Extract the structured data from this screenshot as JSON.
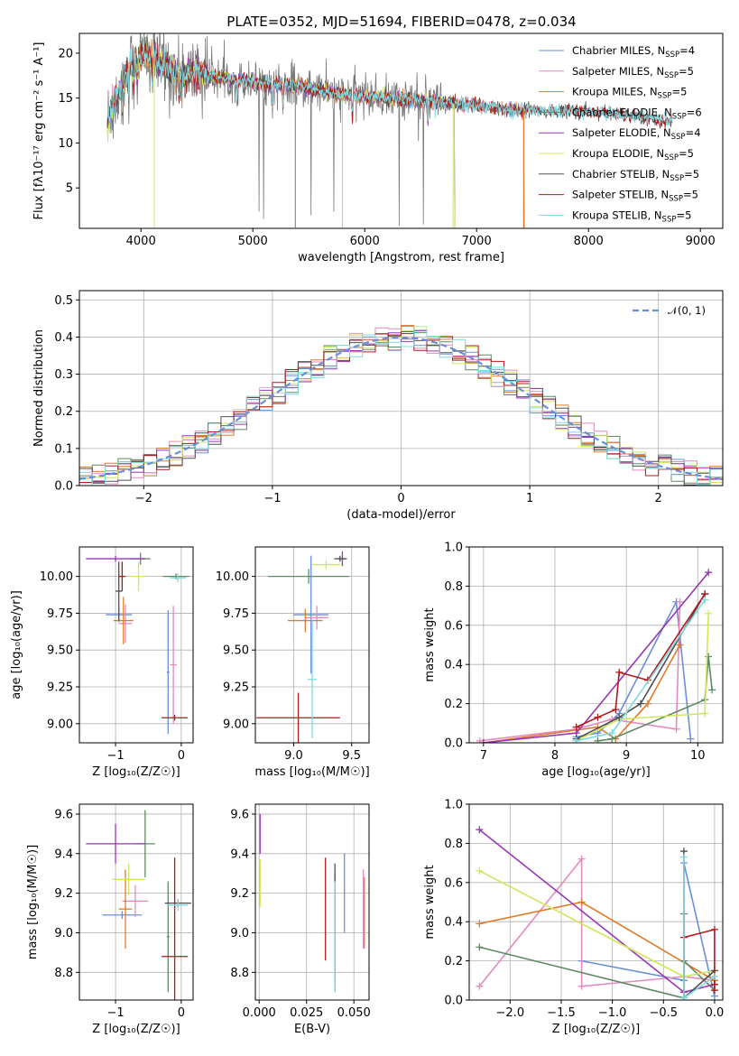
{
  "title": "PLATE=0352, MJD=51694, FIBERID=0478, z=0.034",
  "colors": [
    "#6a8fd8",
    "#e58ac0",
    "#e07b2a",
    "#5f8a63",
    "#9b36b3",
    "#cfe859",
    "#505050",
    "#b01a1a",
    "#7fd9e0"
  ],
  "chart_data": [
    {
      "id": "spectrum",
      "type": "line",
      "xlabel": "wavelength [Angstrom, rest frame]",
      "ylabel": "Flux [fλ10⁻¹⁷ erg cm⁻² s⁻¹ A⁻¹]",
      "xlim": [
        3450,
        9200
      ],
      "ylim": [
        0.5,
        22.2
      ],
      "xticks": [
        4000,
        5000,
        6000,
        7000,
        8000,
        9000
      ],
      "yticks": [
        5,
        10,
        15,
        20
      ],
      "legend_position": "top-right",
      "series": [
        {
          "name": "Chabrier MILES, N_SSP=4",
          "color": "#6a8fd8"
        },
        {
          "name": "Salpeter MILES, N_SSP=5",
          "color": "#e58ac0"
        },
        {
          "name": "Kroupa MILES, N_SSP=5",
          "color": "#e07b2a"
        },
        {
          "name": "Chabrier ELODIE, N_SSP=6",
          "color": "#5f8a63"
        },
        {
          "name": "Salpeter ELODIE, N_SSP=4",
          "color": "#9b36b3"
        },
        {
          "name": "Kroupa ELODIE, N_SSP=5",
          "color": "#cfe859"
        },
        {
          "name": "Chabrier STELIB, N_SSP=5",
          "color": "#505050"
        },
        {
          "name": "Salpeter STELIB, N_SSP=5",
          "color": "#b01a1a"
        },
        {
          "name": "Kroupa STELIB, N_SSP=5",
          "color": "#7fd9e0"
        }
      ],
      "continuum_x": [
        3700,
        3800,
        3900,
        4000,
        4100,
        4300,
        4600,
        5000,
        5400,
        5800,
        6200,
        6600,
        7000,
        7400,
        7800,
        8200,
        8600,
        8800
      ],
      "continuum_y": [
        12.5,
        15.5,
        18.5,
        19.8,
        19.5,
        17.8,
        17.5,
        16.8,
        16.3,
        15.4,
        15.0,
        14.6,
        14.2,
        13.6,
        13.6,
        13.3,
        12.6,
        12.4
      ],
      "end_x": {
        "data_noisy": 6700,
        "miles": 7420,
        "elodie": 6800,
        "stelib": 8750
      }
    },
    {
      "id": "residuals",
      "type": "step",
      "xlabel": "(data-model)/error",
      "ylabel": "Normed distribution",
      "xlim": [
        -2.5,
        2.5
      ],
      "ylim": [
        0,
        0.525
      ],
      "xticks": [
        -2,
        -1,
        0,
        1,
        2
      ],
      "yticks": [
        0.0,
        0.1,
        0.2,
        0.3,
        0.4,
        0.5
      ],
      "legend_position": "top-right",
      "reference": {
        "name": "𝒩(0, 1)",
        "mean": 0,
        "sd": 1,
        "color": "#6a8fd8"
      },
      "bin_width": 0.1
    },
    {
      "id": "age_vs_Z",
      "type": "errorbar",
      "xlabel": "Z [log₁₀(Z/Z☉)]",
      "ylabel": "age  [log₁₀(age/yr)]",
      "xlim": [
        -1.55,
        0.18
      ],
      "ylim": [
        8.87,
        10.2
      ],
      "xticks": [
        -1,
        0
      ],
      "yticks": [
        9.0,
        9.25,
        9.5,
        9.75,
        10.0
      ],
      "points": [
        {
          "color": "#6a8fd8",
          "x": -0.95,
          "y": 9.74,
          "xerr": 0.2,
          "yerr": 0.05
        },
        {
          "color": "#6a8fd8",
          "x": -0.2,
          "y": 9.35,
          "xerr": 0.02,
          "yerr": 0.42
        },
        {
          "color": "#e58ac0",
          "x": -0.85,
          "y": 9.68,
          "xerr": 0.1,
          "yerr": 0.13
        },
        {
          "color": "#e58ac0",
          "x": -0.12,
          "y": 9.4,
          "xerr": 0.05,
          "yerr": 0.4
        },
        {
          "color": "#e07b2a",
          "x": -0.88,
          "y": 9.7,
          "xerr": 0.15,
          "yerr": 0.16
        },
        {
          "color": "#5f8a63",
          "x": -0.62,
          "y": 10.12,
          "xerr": 0.15,
          "yerr": 0.04
        },
        {
          "color": "#5f8a63",
          "x": -0.08,
          "y": 10.0,
          "xerr": 0.2,
          "yerr": 0.02
        },
        {
          "color": "#9b36b3",
          "x": -1.0,
          "y": 10.12,
          "xerr": 0.45,
          "yerr": 0.02
        },
        {
          "color": "#cfe859",
          "x": -0.65,
          "y": 10.0,
          "xerr": 0.1,
          "yerr": 0.1
        },
        {
          "color": "#505050",
          "x": -0.95,
          "y": 9.9,
          "xerr": 0.05,
          "yerr": 0.2
        },
        {
          "color": "#b01a1a",
          "x": -0.1,
          "y": 9.04,
          "xerr": 0.2,
          "yerr": 0.02
        },
        {
          "color": "#b01a1a",
          "x": -0.9,
          "y": 10.0,
          "xerr": 0.05,
          "yerr": 0.1
        },
        {
          "color": "#7fd9e0",
          "x": -0.05,
          "y": 9.99,
          "xerr": 0.12,
          "yerr": 0.03
        }
      ]
    },
    {
      "id": "age_vs_mass",
      "type": "errorbar",
      "xlabel": "mass [log₁₀(M/M☉)]",
      "ylabel": "",
      "xlim": [
        8.67,
        9.65
      ],
      "ylim": [
        8.87,
        10.2
      ],
      "xticks": [
        9.0,
        9.5
      ],
      "yticks": [
        9.0,
        9.25,
        9.5,
        9.75,
        10.0
      ],
      "points": [
        {
          "color": "#6a8fd8",
          "x": 9.15,
          "y": 9.74,
          "xerr": 0.15,
          "yerr": 0.4
        },
        {
          "color": "#e58ac0",
          "x": 9.2,
          "y": 9.72,
          "xerr": 0.1,
          "yerr": 0.08
        },
        {
          "color": "#e07b2a",
          "x": 9.1,
          "y": 9.7,
          "xerr": 0.15,
          "yerr": 0.08
        },
        {
          "color": "#5f8a63",
          "x": 9.13,
          "y": 10.0,
          "xerr": 0.35,
          "yerr": 0.05
        },
        {
          "color": "#9b36b3",
          "x": 9.42,
          "y": 10.12,
          "xerr": 0.04,
          "yerr": 0.05
        },
        {
          "color": "#cfe859",
          "x": 9.28,
          "y": 10.08,
          "xerr": 0.12,
          "yerr": 0.03
        },
        {
          "color": "#505050",
          "x": 9.4,
          "y": 10.12,
          "xerr": 0.05,
          "yerr": 0.02
        },
        {
          "color": "#b01a1a",
          "x": 9.04,
          "y": 9.04,
          "xerr": 0.36,
          "yerr": 0.17
        },
        {
          "color": "#7fd9e0",
          "x": 9.16,
          "y": 9.3,
          "xerr": 0.04,
          "yerr": 0.4
        }
      ]
    },
    {
      "id": "weight_vs_age",
      "type": "line",
      "xlabel": "age  [log₁₀(age/yr)]",
      "ylabel": "mass weight",
      "xlim": [
        6.8,
        10.35
      ],
      "ylim": [
        0,
        1
      ],
      "xticks": [
        7,
        8,
        9,
        10
      ],
      "yticks": [
        0.0,
        0.2,
        0.4,
        0.6,
        0.8,
        1.0
      ],
      "series": [
        {
          "color": "#6a8fd8",
          "x": [
            8.3,
            8.6,
            8.9,
            9.7,
            9.9
          ],
          "y": [
            0.03,
            0.05,
            0.15,
            0.72,
            0.02
          ]
        },
        {
          "color": "#e58ac0",
          "x": [
            6.95,
            8.3,
            8.8,
            9.7,
            9.75
          ],
          "y": [
            0.01,
            0.07,
            0.12,
            0.07,
            0.72
          ]
        },
        {
          "color": "#e07b2a",
          "x": [
            7.0,
            8.6,
            8.85,
            9.3,
            9.75
          ],
          "y": [
            0.0,
            0.08,
            0.02,
            0.2,
            0.5
          ]
        },
        {
          "color": "#5f8a63",
          "x": [
            8.6,
            8.8,
            10.1,
            10.15,
            10.2
          ],
          "y": [
            0.01,
            0.02,
            0.22,
            0.44,
            0.27
          ]
        },
        {
          "color": "#9b36b3",
          "x": [
            7.0,
            8.3,
            10.15
          ],
          "y": [
            0.0,
            0.05,
            0.87
          ]
        },
        {
          "color": "#cfe859",
          "x": [
            8.3,
            8.9,
            10.1,
            10.15
          ],
          "y": [
            0.01,
            0.12,
            0.15,
            0.66
          ]
        },
        {
          "color": "#505050",
          "x": [
            8.3,
            8.9,
            9.2,
            10.1
          ],
          "y": [
            0.02,
            0.13,
            0.2,
            0.76
          ]
        },
        {
          "color": "#b01a1a",
          "x": [
            8.3,
            8.6,
            8.85,
            8.9,
            9.3,
            10.1
          ],
          "y": [
            0.08,
            0.13,
            0.17,
            0.36,
            0.32,
            0.76
          ]
        },
        {
          "color": "#7fd9e0",
          "x": [
            8.3,
            8.8,
            10.1
          ],
          "y": [
            0.01,
            0.05,
            0.73
          ]
        }
      ]
    },
    {
      "id": "mass_vs_Z",
      "type": "errorbar",
      "xlabel": "Z [log₁₀(Z/Z☉)]",
      "ylabel": "mass [log₁₀(M/M☉)]",
      "xlim": [
        -1.55,
        0.18
      ],
      "ylim": [
        8.66,
        9.65
      ],
      "xticks": [
        -1,
        0
      ],
      "yticks": [
        8.8,
        9.0,
        9.2,
        9.4,
        9.6
      ],
      "points": [
        {
          "color": "#6a8fd8",
          "x": -0.9,
          "y": 9.09,
          "xerr": 0.3,
          "yerr": 0.02
        },
        {
          "color": "#e58ac0",
          "x": -0.7,
          "y": 9.16,
          "xerr": 0.2,
          "yerr": 0.08
        },
        {
          "color": "#e07b2a",
          "x": -0.85,
          "y": 9.12,
          "xerr": 0.1,
          "yerr": 0.2
        },
        {
          "color": "#5f8a63",
          "x": -0.55,
          "y": 9.45,
          "xerr": 0.15,
          "yerr": 0.17
        },
        {
          "color": "#5f8a63",
          "x": -0.2,
          "y": 8.98,
          "xerr": 0.02,
          "yerr": 0.28
        },
        {
          "color": "#9b36b3",
          "x": -1.0,
          "y": 9.45,
          "xerr": 0.45,
          "yerr": 0.1
        },
        {
          "color": "#cfe859",
          "x": -0.8,
          "y": 9.27,
          "xerr": 0.25,
          "yerr": 0.08
        },
        {
          "color": "#505050",
          "x": -0.05,
          "y": 9.15,
          "xerr": 0.2,
          "yerr": 0.02
        },
        {
          "color": "#b01a1a",
          "x": -0.1,
          "y": 8.88,
          "xerr": 0.2,
          "yerr": 0.5
        },
        {
          "color": "#7fd9e0",
          "x": -0.05,
          "y": 9.14,
          "xerr": 0.15,
          "yerr": 0.03
        }
      ]
    },
    {
      "id": "mass_vs_EBV",
      "type": "errorbar",
      "xlabel": "E(B-V)",
      "ylabel": "",
      "xlim": [
        -0.002,
        0.058
      ],
      "ylim": [
        8.66,
        9.65
      ],
      "xticks": [
        0.0,
        0.025,
        0.05
      ],
      "yticks": [
        8.8,
        9.0,
        9.2,
        9.4,
        9.6
      ],
      "points": [
        {
          "color": "#6a8fd8",
          "x": 0.045,
          "y": 9.2,
          "xerr": 0,
          "yerr": 0.2
        },
        {
          "color": "#e58ac0",
          "x": 0.055,
          "y": 9.12,
          "xerr": 0,
          "yerr": 0.2
        },
        {
          "color": "#e07b2a",
          "x": 0.0555,
          "y": 9.1,
          "xerr": 0,
          "yerr": 0.18
        },
        {
          "color": "#5f8a63",
          "x": 0.04,
          "y": 9.0,
          "xerr": 0,
          "yerr": 0.3
        },
        {
          "color": "#9b36b3",
          "x": 0.0005,
          "y": 9.5,
          "xerr": 0,
          "yerr": 0.1
        },
        {
          "color": "#cfe859",
          "x": 0.0005,
          "y": 9.25,
          "xerr": 0,
          "yerr": 0.12
        },
        {
          "color": "#505050",
          "x": 0.04,
          "y": 9.05,
          "xerr": 0,
          "yerr": 0.3
        },
        {
          "color": "#b01a1a",
          "x": 0.035,
          "y": 9.12,
          "xerr": 0,
          "yerr": 0.26
        },
        {
          "color": "#7fd9e0",
          "x": 0.04,
          "y": 8.98,
          "xerr": 0,
          "yerr": 0.28
        }
      ]
    },
    {
      "id": "weight_vs_Z",
      "type": "line",
      "xlabel": "Z [log₁₀(Z/Z☉)]",
      "ylabel": "mass weight",
      "xlim": [
        -2.4,
        0.08
      ],
      "ylim": [
        0,
        1
      ],
      "xticks": [
        -2.0,
        -1.5,
        -1.0,
        -0.5,
        0.0
      ],
      "yticks": [
        0.0,
        0.2,
        0.4,
        0.6,
        0.8,
        1.0
      ],
      "series": [
        {
          "color": "#6a8fd8",
          "x": [
            -1.3,
            -0.3,
            -0.3,
            0.0
          ],
          "y": [
            0.2,
            0.1,
            0.7,
            0.02
          ]
        },
        {
          "color": "#e58ac0",
          "x": [
            -2.3,
            -1.3,
            -1.3,
            -0.3,
            0.0
          ],
          "y": [
            0.07,
            0.72,
            0.07,
            0.12,
            0.1
          ]
        },
        {
          "color": "#e07b2a",
          "x": [
            -2.3,
            -1.3,
            0.0
          ],
          "y": [
            0.39,
            0.5,
            0.1
          ]
        },
        {
          "color": "#5f8a63",
          "x": [
            -2.3,
            -0.3,
            -0.3,
            -0.3,
            0.0
          ],
          "y": [
            0.27,
            0.01,
            0.44,
            0.2,
            0.05
          ]
        },
        {
          "color": "#9b36b3",
          "x": [
            -2.3,
            -0.3,
            0.0
          ],
          "y": [
            0.87,
            0.04,
            0.08
          ]
        },
        {
          "color": "#cfe859",
          "x": [
            -2.3,
            -0.3,
            0.0
          ],
          "y": [
            0.66,
            0.12,
            0.15
          ]
        },
        {
          "color": "#505050",
          "x": [
            -0.3,
            -0.3,
            0.0
          ],
          "y": [
            0.76,
            0.01,
            0.15
          ]
        },
        {
          "color": "#b01a1a",
          "x": [
            -0.3,
            0.0,
            0.0,
            0.0
          ],
          "y": [
            0.32,
            0.36,
            0.08,
            0.05
          ]
        },
        {
          "color": "#7fd9e0",
          "x": [
            -0.3,
            -0.3,
            0.0
          ],
          "y": [
            0.73,
            0.01,
            0.12
          ]
        }
      ]
    }
  ]
}
